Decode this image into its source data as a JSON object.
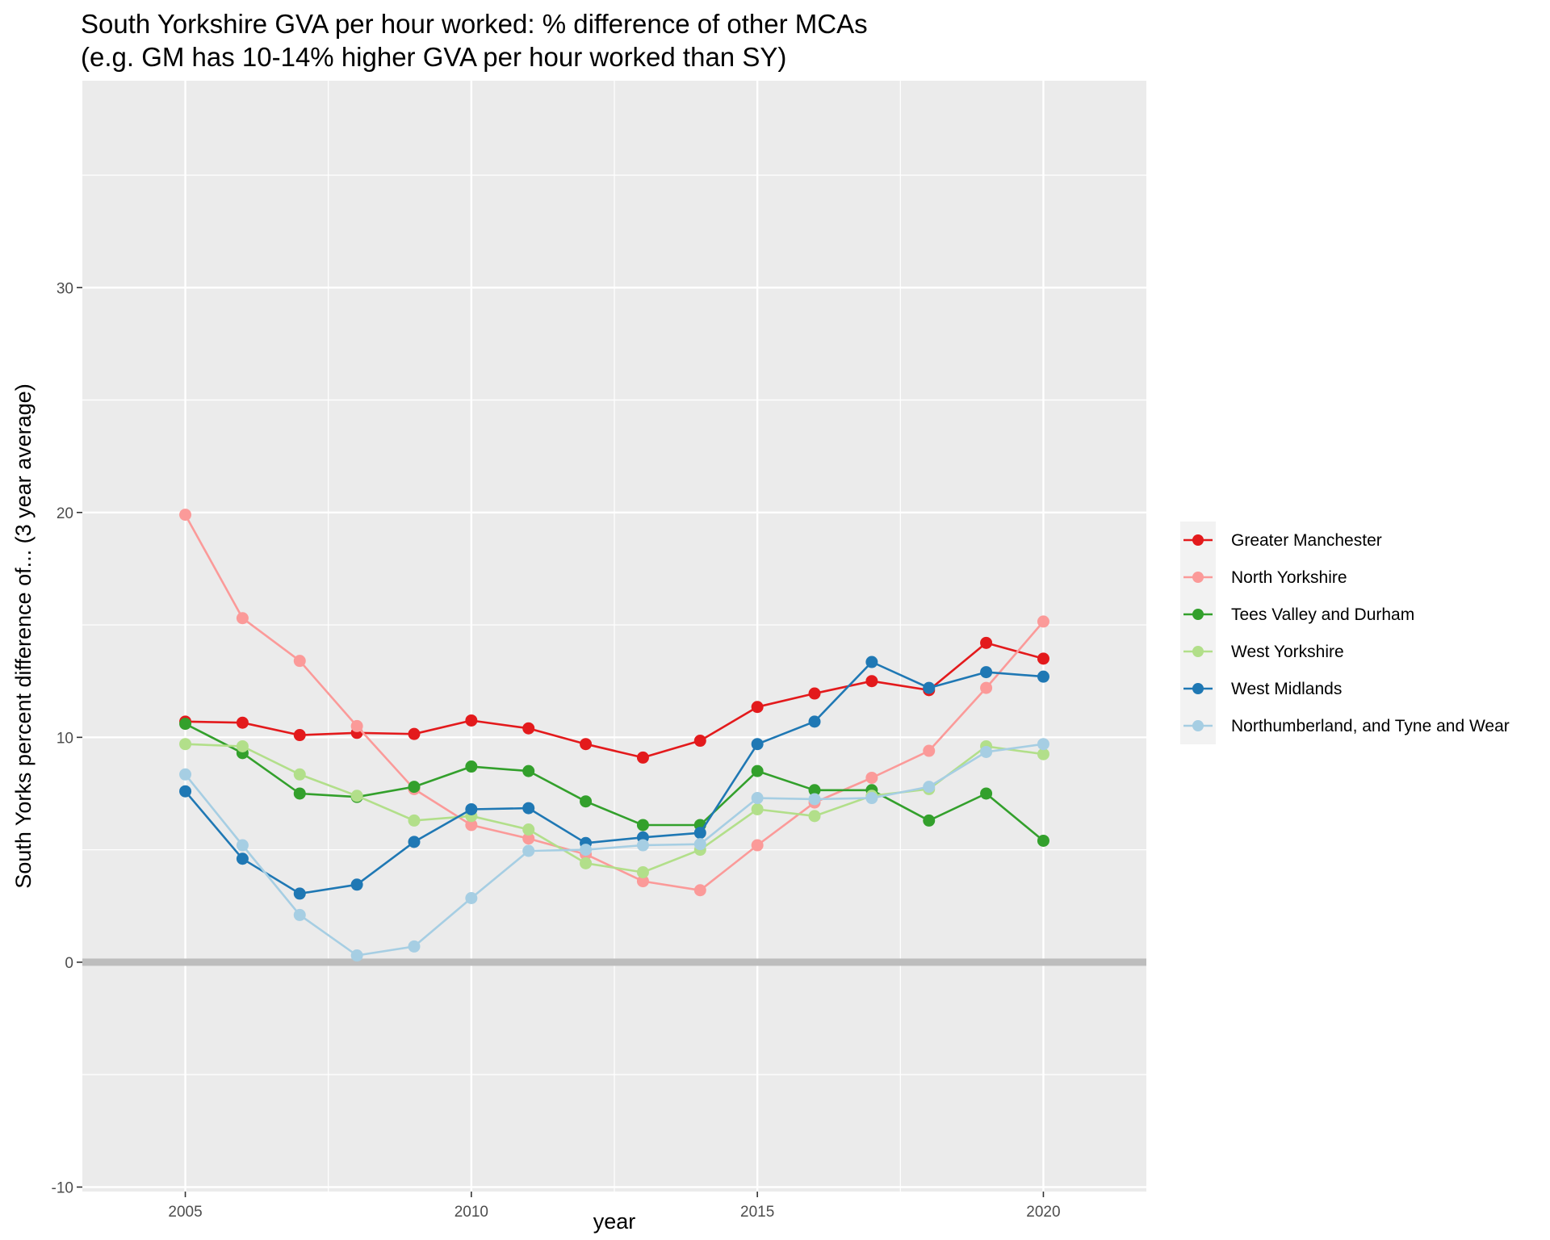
{
  "chart_data": {
    "type": "line",
    "title_lines": [
      "South Yorkshire GVA per hour worked: % difference of other MCAs",
      "(e.g. GM has 10-14% higher GVA per hour worked than SY)"
    ],
    "xlabel": "year",
    "ylabel": "South Yorks percent difference of... (3 year average)",
    "xlim": [
      2003.2,
      2021.8
    ],
    "ylim": [
      -10.2,
      39.2
    ],
    "x_ticks": [
      2005,
      2010,
      2015,
      2020
    ],
    "x_tick_labels": [
      "2005",
      "2010",
      "2015",
      "2020"
    ],
    "y_ticks": [
      -10,
      0,
      10,
      20,
      30
    ],
    "y_tick_labels": [
      "-10",
      "0",
      "10",
      "20",
      "30"
    ],
    "x": [
      2005,
      2006,
      2007,
      2008,
      2009,
      2010,
      2011,
      2012,
      2013,
      2014,
      2015,
      2016,
      2017,
      2018,
      2019,
      2020
    ],
    "reference_line_y": 0,
    "grid": true,
    "legend_position": "right",
    "panel_color": "#ebebeb",
    "series": [
      {
        "name": "Greater Manchester",
        "color": "#e31a1c",
        "values": [
          10.7,
          10.65,
          10.1,
          10.2,
          10.15,
          10.75,
          10.4,
          9.7,
          9.1,
          9.85,
          11.35,
          11.95,
          12.5,
          12.1,
          14.2,
          13.5
        ]
      },
      {
        "name": "North Yorkshire",
        "color": "#fb9a99",
        "values": [
          19.9,
          15.3,
          13.4,
          10.5,
          7.7,
          6.1,
          5.5,
          4.8,
          3.6,
          3.2,
          5.2,
          7.1,
          8.2,
          9.4,
          12.2,
          15.15
        ]
      },
      {
        "name": "Tees Valley and Durham",
        "color": "#33a02c",
        "values": [
          10.6,
          9.3,
          7.5,
          7.35,
          7.8,
          8.7,
          8.5,
          7.15,
          6.1,
          6.1,
          8.5,
          7.65,
          7.65,
          6.3,
          7.5,
          5.4
        ]
      },
      {
        "name": "West Yorkshire",
        "color": "#b2df8a",
        "values": [
          9.7,
          9.6,
          8.35,
          7.4,
          6.3,
          6.5,
          5.9,
          4.4,
          4.0,
          5.0,
          6.8,
          6.5,
          7.4,
          7.7,
          9.6,
          9.25
        ]
      },
      {
        "name": "West Midlands",
        "color": "#1f78b4",
        "values": [
          7.6,
          4.6,
          3.05,
          3.45,
          5.35,
          6.8,
          6.85,
          5.3,
          5.55,
          5.75,
          9.7,
          10.7,
          13.35,
          12.2,
          12.9,
          12.7
        ]
      },
      {
        "name": "Northumberland, and Tyne and Wear",
        "color": "#a6cee3",
        "values": [
          8.35,
          5.2,
          2.1,
          0.3,
          0.7,
          2.85,
          4.95,
          5.0,
          5.2,
          5.25,
          7.3,
          7.25,
          7.3,
          7.8,
          9.35,
          9.7
        ]
      }
    ]
  }
}
